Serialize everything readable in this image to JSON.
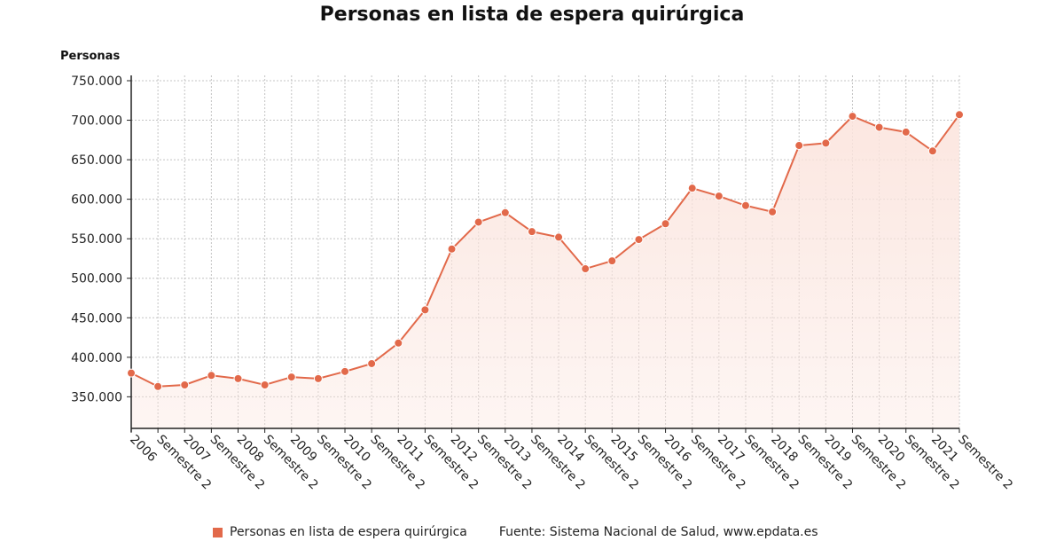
{
  "chart_data": {
    "type": "area",
    "title": "Personas en lista de espera quirúrgica",
    "ylabel": "Personas",
    "xlabel": "",
    "ylim": [
      310000,
      750000
    ],
    "y_ticks": [
      350000,
      400000,
      450000,
      500000,
      550000,
      600000,
      650000,
      700000,
      750000
    ],
    "y_tick_labels": [
      "350.000",
      "400.000",
      "450.000",
      "500.000",
      "550.000",
      "600.000",
      "650.000",
      "700.000",
      "750.000"
    ],
    "grid": true,
    "legend_position": "bottom",
    "categories": [
      "2006",
      "Semestre 2",
      "2007",
      "Semestre 2",
      "2008",
      "Semestre 2",
      "2009",
      "Semestre 2",
      "2010",
      "Semestre 2",
      "2011",
      "Semestre 2",
      "2012",
      "Semestre 2",
      "2013",
      "Semestre 2",
      "2014",
      "Semestre 2",
      "2015",
      "Semestre 2",
      "2016",
      "Semestre 2",
      "2017",
      "Semestre 2",
      "2018",
      "Semestre 2",
      "2019",
      "Semestre 2",
      "2020",
      "Semestre 2",
      "2021",
      "Semestre 2"
    ],
    "series": [
      {
        "name": "Personas en lista de espera quirúrgica",
        "color": "#e2694a",
        "fill_color": "#fbe4dd",
        "values": [
          380000,
          363000,
          365000,
          377000,
          373000,
          365000,
          375000,
          373000,
          382000,
          392000,
          418000,
          460000,
          537000,
          571000,
          583000,
          559000,
          552000,
          512000,
          522000,
          549000,
          569000,
          614000,
          604000,
          592000,
          584000,
          668000,
          671000,
          705000,
          691000,
          685000,
          661000,
          707000
        ]
      }
    ],
    "source": "Fuente: Sistema Nacional de Salud, www.epdata.es"
  }
}
